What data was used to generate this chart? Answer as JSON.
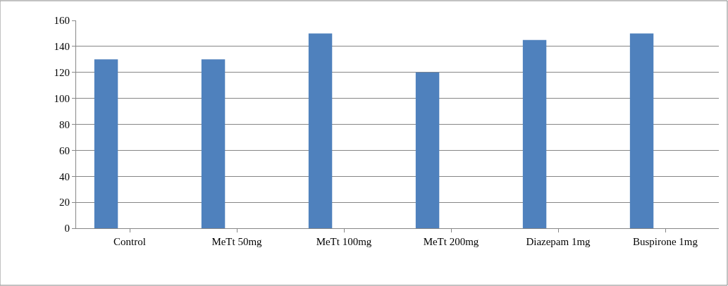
{
  "chart_data": {
    "type": "bar",
    "categories": [
      "Control",
      "MeTt 50mg",
      "MeTt 100mg",
      "MeTt 200mg",
      "Diazepam 1mg",
      "Buspirone 1mg"
    ],
    "values": [
      130,
      130,
      150,
      120,
      145,
      150
    ],
    "color": "#4f81bd",
    "ylim": [
      0,
      160
    ],
    "yticks": [
      0,
      20,
      40,
      60,
      80,
      100,
      120,
      140,
      160
    ],
    "grid": "y",
    "legend": false
  }
}
